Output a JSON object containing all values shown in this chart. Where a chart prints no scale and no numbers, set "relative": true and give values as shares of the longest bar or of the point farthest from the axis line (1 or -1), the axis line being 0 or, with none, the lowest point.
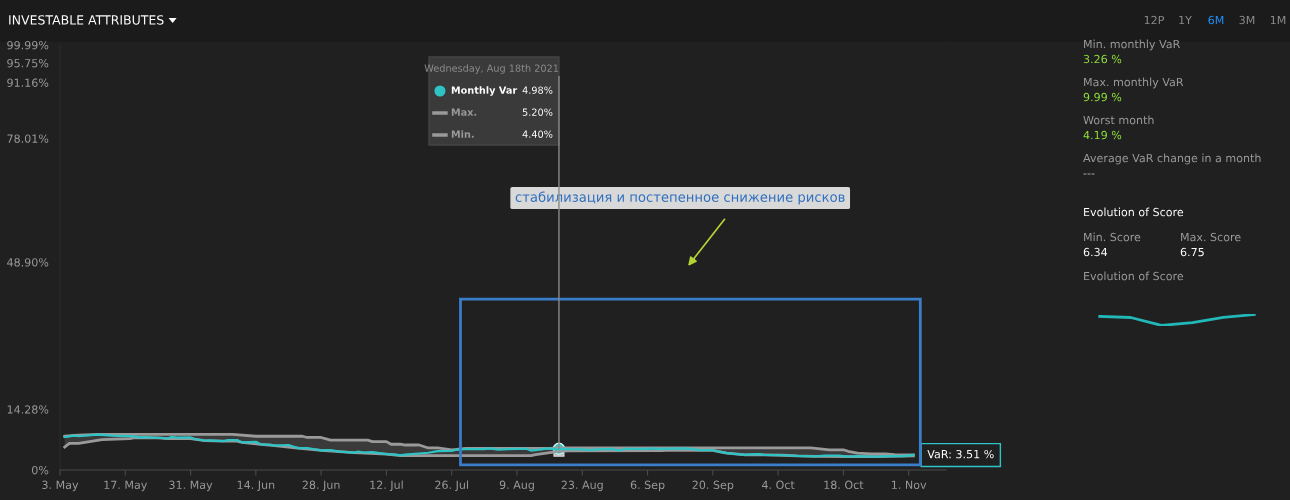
{
  "chart_data": [
    {
      "type": "line",
      "title": "INVESTABLE ATTRIBUTES",
      "xlim": [
        "2021-05-03",
        "2021-11-09"
      ],
      "ylim": [
        0,
        99.99
      ],
      "xticks": [
        {
          "value": "2021-05-03",
          "label": "3. May"
        },
        {
          "value": "2021-05-17",
          "label": "17. May"
        },
        {
          "value": "2021-05-31",
          "label": "31. May"
        },
        {
          "value": "2021-06-14",
          "label": "14. Jun"
        },
        {
          "value": "2021-06-28",
          "label": "28. Jun"
        },
        {
          "value": "2021-07-12",
          "label": "12. Jul"
        },
        {
          "value": "2021-07-26",
          "label": "26. Jul"
        },
        {
          "value": "2021-08-09",
          "label": "9. Aug"
        },
        {
          "value": "2021-08-23",
          "label": "23. Aug"
        },
        {
          "value": "2021-09-06",
          "label": "6. Sep"
        },
        {
          "value": "2021-09-20",
          "label": "20. Sep"
        },
        {
          "value": "2021-10-04",
          "label": "4. Oct"
        },
        {
          "value": "2021-10-18",
          "label": "18. Oct"
        },
        {
          "value": "2021-11-01",
          "label": "1. Nov"
        }
      ],
      "yticks": [
        {
          "value": 0,
          "label": "0%"
        },
        {
          "value": 14.28,
          "label": "14.28%"
        },
        {
          "value": 48.9,
          "label": "48.90%"
        },
        {
          "value": 78.01,
          "label": "78.01%"
        },
        {
          "value": 91.16,
          "label": "91.16%"
        },
        {
          "value": 95.75,
          "label": "95.75%"
        },
        {
          "value": 99.99,
          "label": "99.99%"
        }
      ],
      "legend": "top",
      "grid": false,
      "series": [
        {
          "name": "Monthly Var",
          "color": "#2ec4c6",
          "x": [
            "2021-05-04",
            "2021-05-06",
            "2021-05-07",
            "2021-05-11",
            "2021-05-12",
            "2021-05-14",
            "2021-05-19",
            "2021-05-20",
            "2021-05-21",
            "2021-05-25",
            "2021-05-26",
            "2021-05-27",
            "2021-05-28",
            "2021-05-31",
            "2021-06-01",
            "2021-06-03",
            "2021-06-04",
            "2021-06-07",
            "2021-06-08",
            "2021-06-10",
            "2021-06-11",
            "2021-06-14",
            "2021-06-15",
            "2021-06-17",
            "2021-06-18",
            "2021-06-21",
            "2021-06-23",
            "2021-06-25",
            "2021-06-28",
            "2021-06-30",
            "2021-07-02",
            "2021-07-05",
            "2021-07-06",
            "2021-07-07",
            "2021-07-09",
            "2021-07-12",
            "2021-07-14",
            "2021-07-15",
            "2021-07-16",
            "2021-07-21",
            "2021-07-23",
            "2021-07-26",
            "2021-07-27",
            "2021-07-29",
            "2021-08-02",
            "2021-08-03",
            "2021-08-05",
            "2021-08-07",
            "2021-08-11",
            "2021-08-12",
            "2021-08-16",
            "2021-08-17",
            "2021-08-18",
            "2021-08-20",
            "2021-08-23",
            "2021-08-25",
            "2021-08-26",
            "2021-08-29",
            "2021-08-31",
            "2021-09-01",
            "2021-09-06",
            "2021-09-07",
            "2021-09-08",
            "2021-09-14",
            "2021-09-16",
            "2021-09-17",
            "2021-09-20",
            "2021-09-21",
            "2021-09-23",
            "2021-09-27",
            "2021-09-28",
            "2021-09-30",
            "2021-10-01",
            "2021-10-05",
            "2021-10-08",
            "2021-10-12",
            "2021-10-14",
            "2021-10-17",
            "2021-10-19",
            "2021-10-21",
            "2021-10-25",
            "2021-10-28",
            "2021-10-31",
            "2021-11-02"
          ],
          "values": [
            7.76,
            8.08,
            7.94,
            8.33,
            8.28,
            8.08,
            7.92,
            7.67,
            7.72,
            7.53,
            7.36,
            7.81,
            7.6,
            7.65,
            7.24,
            6.94,
            6.96,
            6.77,
            7.05,
            7.05,
            6.5,
            6.63,
            6.05,
            5.98,
            5.73,
            5.88,
            5.17,
            5.17,
            4.61,
            4.67,
            4.31,
            4.08,
            4.31,
            4.12,
            4.21,
            3.73,
            3.6,
            3.42,
            3.64,
            4.06,
            4.45,
            4.51,
            4.81,
            4.92,
            4.93,
            5.07,
            4.81,
            4.93,
            5.0,
            4.57,
            5.1,
            4.84,
            4.98,
            4.89,
            4.84,
            4.69,
            4.84,
            4.95,
            4.6,
            4.95,
            4.95,
            5.07,
            4.95,
            5.07,
            4.93,
            4.69,
            4.69,
            4.4,
            3.99,
            3.57,
            3.68,
            3.73,
            3.55,
            3.47,
            3.3,
            3.23,
            3.36,
            3.36,
            3.13,
            3.26,
            3.15,
            3.26,
            3.26,
            3.51
          ],
          "upper": [
            7.96,
            8.15,
            8.19,
            8.37,
            8.37,
            8.37,
            8.37,
            8.37,
            8.37,
            8.37,
            8.37,
            8.37,
            8.37,
            8.37,
            8.37,
            8.37,
            8.37,
            8.37,
            8.37,
            8.28,
            8.2,
            7.94,
            7.94,
            7.94,
            7.94,
            7.94,
            7.94,
            7.65,
            7.65,
            7.01,
            7.01,
            7.01,
            7.01,
            7.01,
            6.68,
            6.68,
            6.06,
            6.06,
            5.88,
            5.18,
            5.18,
            4.75,
            4.85,
            5.1,
            5.1,
            5.1,
            5.1,
            5.1,
            5.1,
            5.1,
            5.1,
            5.15,
            5.2,
            5.2,
            5.2,
            5.2,
            5.2,
            5.2,
            5.2,
            5.2,
            5.2,
            5.2,
            5.2,
            5.2,
            5.2,
            5.2,
            5.2,
            5.2,
            5.2,
            5.2,
            5.2,
            5.2,
            5.2,
            5.2,
            5.2,
            5.09,
            4.87,
            4.76,
            4.4,
            3.99,
            3.77,
            3.68,
            3.57,
            3.55
          ],
          "lower": [
            5.4,
            6.28,
            6.28,
            6.99,
            7.17,
            7.23,
            7.6,
            7.59,
            7.58,
            7.46,
            7.36,
            7.36,
            7.36,
            7.36,
            7.2,
            6.89,
            6.87,
            6.77,
            6.77,
            6.77,
            6.5,
            6.16,
            6.05,
            5.84,
            5.73,
            5.39,
            5.17,
            4.95,
            4.61,
            4.46,
            4.31,
            4.08,
            4.03,
            3.98,
            3.88,
            3.73,
            3.48,
            3.36,
            3.36,
            3.36,
            3.36,
            3.36,
            3.36,
            3.36,
            3.36,
            3.36,
            3.36,
            3.36,
            3.36,
            3.36,
            4.09,
            4.25,
            4.4,
            4.48,
            4.49,
            4.5,
            4.51,
            4.52,
            4.53,
            4.53,
            4.55,
            4.56,
            4.56,
            4.64,
            4.64,
            4.64,
            4.64,
            4.4,
            3.99,
            3.57,
            3.57,
            3.56,
            3.55,
            3.47,
            3.3,
            3.23,
            3.2,
            3.16,
            3.13,
            3.13,
            3.13,
            3.19,
            3.26,
            3.3
          ]
        },
        {
          "name": "Max.",
          "color": "#9a9a9a",
          "x": [
            "2021-05-04",
            "2021-05-06",
            "2021-05-07",
            "2021-05-11",
            "2021-06-09",
            "2021-06-14",
            "2021-06-24",
            "2021-06-25",
            "2021-06-28",
            "2021-06-30",
            "2021-07-08",
            "2021-07-09",
            "2021-07-12",
            "2021-07-13",
            "2021-07-15",
            "2021-07-16",
            "2021-07-19",
            "2021-07-21",
            "2021-07-23",
            "2021-07-26",
            "2021-07-27",
            "2021-07-29",
            "2021-08-16",
            "2021-08-18",
            "2021-10-11",
            "2021-10-15",
            "2021-10-18",
            "2021-10-19",
            "2021-10-21",
            "2021-10-24",
            "2021-10-27",
            "2021-10-29",
            "2021-11-02"
          ],
          "values": [
            7.96,
            8.15,
            8.19,
            8.37,
            8.37,
            7.94,
            7.94,
            7.65,
            7.65,
            7.01,
            7.01,
            6.68,
            6.68,
            6.06,
            6.06,
            5.88,
            5.88,
            5.18,
            5.18,
            4.75,
            4.85,
            5.1,
            5.1,
            5.2,
            5.2,
            4.76,
            4.76,
            4.4,
            3.99,
            3.77,
            3.77,
            3.59,
            3.55
          ]
        },
        {
          "name": "Min.",
          "color": "#9a9a9a",
          "x": [
            "2021-05-04",
            "2021-05-05",
            "2021-05-07",
            "2021-05-12",
            "2021-05-18",
            "2021-05-19",
            "2021-05-24",
            "2021-05-26",
            "2021-05-31",
            "2021-06-03",
            "2021-06-07",
            "2021-06-10",
            "2021-06-11",
            "2021-06-15",
            "2021-06-18",
            "2021-06-23",
            "2021-06-28",
            "2021-07-05",
            "2021-07-12",
            "2021-07-15",
            "2021-08-12",
            "2021-08-13",
            "2021-08-18",
            "2021-08-20",
            "2021-09-09",
            "2021-09-10",
            "2021-09-20",
            "2021-09-21",
            "2021-09-23",
            "2021-09-27",
            "2021-10-01",
            "2021-10-05",
            "2021-10-08",
            "2021-10-12",
            "2021-10-19",
            "2021-10-25",
            "2021-11-02"
          ],
          "values": [
            5.4,
            6.28,
            6.28,
            7.17,
            7.36,
            7.6,
            7.55,
            7.36,
            7.36,
            6.89,
            6.77,
            6.77,
            6.5,
            6.05,
            5.73,
            5.17,
            4.61,
            4.08,
            3.73,
            3.36,
            3.36,
            3.62,
            4.4,
            4.48,
            4.57,
            4.64,
            4.64,
            4.4,
            3.99,
            3.57,
            3.55,
            3.47,
            3.3,
            3.23,
            3.13,
            3.13,
            3.3
          ]
        }
      ],
      "annotations": [
        {
          "text": "Wednesday, Aug 18th 2021",
          "x": "2021-08-18",
          "y": 4.98
        },
        "4.98%",
        "5.20%",
        "4.40%",
        {
          "text": "VaR: 3.51 %",
          "x": "2021-11-02",
          "y": 3.51
        },
        "стабилизация и постепенное снижение рисков",
        "12P",
        "1Y",
        "6M",
        "3M",
        "1M"
      ]
    },
    {
      "type": "other",
      "annotations": [
        "Min. monthly VaR",
        "3.26 %",
        "Max. monthly VaR",
        "9.99 %",
        "Worst month",
        "4.19 %",
        "Average VaR change in a month",
        "---",
        "Evolution of Score",
        "Min. Score",
        "6.34",
        "Max. Score",
        "6.75"
      ]
    },
    {
      "type": "line",
      "title": "Evolution of Score",
      "relative": true,
      "categories": [
        null,
        null,
        null,
        null,
        null,
        null
      ],
      "series": [
        {
          "color": "#22b8b8",
          "values": [
            0.82,
            0.73,
            0,
            0.27,
            0.73,
            1
          ]
        }
      ]
    }
  ]
}
